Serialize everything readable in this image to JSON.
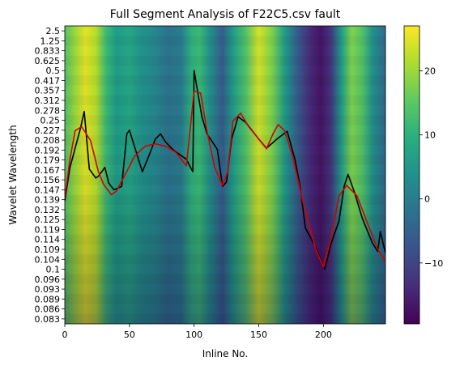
{
  "chart_data": {
    "type": "heatmap",
    "title": "Full Segment Analysis of F22C5.csv fault",
    "xlabel": "Inline No.",
    "ylabel": "Wavelet Wavelength",
    "xlim": [
      0,
      248
    ],
    "x_ticks": [
      0,
      50,
      100,
      150,
      200
    ],
    "y_tick_labels": [
      "2.5",
      "1.25",
      "0.833",
      "0.625",
      "0.5",
      "0.417",
      "0.357",
      "0.312",
      "0.278",
      "0.25",
      "0.227",
      "0.208",
      "0.192",
      "0.179",
      "0.167",
      "0.156",
      "0.147",
      "0.139",
      "0.132",
      "0.125",
      "0.119",
      "0.114",
      "0.109",
      "0.104",
      "0.1",
      "0.096",
      "0.093",
      "0.089",
      "0.086",
      "0.083"
    ],
    "colorbar": {
      "colormap": "viridis",
      "range": [
        -19.5,
        27
      ],
      "ticks": [
        -10,
        0,
        10,
        20
      ]
    },
    "heatmap_column_profile": [
      {
        "x": 0,
        "v": 14
      },
      {
        "x": 8,
        "v": 20
      },
      {
        "x": 16,
        "v": 25
      },
      {
        "x": 24,
        "v": 22
      },
      {
        "x": 32,
        "v": 12
      },
      {
        "x": 40,
        "v": 6
      },
      {
        "x": 50,
        "v": 8
      },
      {
        "x": 60,
        "v": 4
      },
      {
        "x": 70,
        "v": 2
      },
      {
        "x": 80,
        "v": -2
      },
      {
        "x": 90,
        "v": 0
      },
      {
        "x": 98,
        "v": 10
      },
      {
        "x": 104,
        "v": 12
      },
      {
        "x": 112,
        "v": 4
      },
      {
        "x": 122,
        "v": -6
      },
      {
        "x": 130,
        "v": 6
      },
      {
        "x": 140,
        "v": 14
      },
      {
        "x": 150,
        "v": 24
      },
      {
        "x": 160,
        "v": 18
      },
      {
        "x": 170,
        "v": 6
      },
      {
        "x": 180,
        "v": -6
      },
      {
        "x": 190,
        "v": -14
      },
      {
        "x": 198,
        "v": -17
      },
      {
        "x": 206,
        "v": -12
      },
      {
        "x": 214,
        "v": 6
      },
      {
        "x": 222,
        "v": 18
      },
      {
        "x": 230,
        "v": 14
      },
      {
        "x": 238,
        "v": 4
      },
      {
        "x": 248,
        "v": -4
      }
    ],
    "series": [
      {
        "color": "#000000",
        "x": [
          0,
          4,
          12,
          15,
          19,
          24,
          26,
          31,
          34,
          38,
          44,
          48,
          50,
          57,
          60,
          64,
          70,
          74,
          78,
          84,
          94,
          99,
          100,
          106,
          110,
          118,
          122,
          125,
          129,
          134,
          140,
          150,
          156,
          164,
          172,
          178,
          182,
          186,
          194,
          201,
          206,
          212,
          216,
          219,
          224,
          230,
          238,
          242,
          244,
          248
        ],
        "y": [
          0.138,
          0.17,
          0.23,
          0.275,
          0.168,
          0.158,
          0.16,
          0.17,
          0.153,
          0.147,
          0.15,
          0.22,
          0.227,
          0.18,
          0.165,
          0.18,
          0.21,
          0.22,
          0.205,
          0.192,
          0.18,
          0.165,
          0.5,
          0.26,
          0.22,
          0.193,
          0.15,
          0.154,
          0.21,
          0.26,
          0.245,
          0.21,
          0.195,
          0.21,
          0.225,
          0.18,
          0.15,
          0.12,
          0.11,
          0.1,
          0.112,
          0.124,
          0.15,
          0.162,
          0.145,
          0.126,
          0.112,
          0.108,
          0.118,
          0.107
        ]
      },
      {
        "color": "#d40000",
        "x": [
          0,
          4,
          8,
          13,
          20,
          26,
          30,
          36,
          40,
          46,
          54,
          62,
          70,
          78,
          86,
          94,
          100,
          105,
          110,
          116,
          122,
          126,
          130,
          136,
          142,
          150,
          156,
          161,
          165,
          170,
          176,
          184,
          194,
          200,
          206,
          212,
          218,
          226,
          234,
          242,
          248
        ],
        "y": [
          0.14,
          0.18,
          0.226,
          0.235,
          0.207,
          0.165,
          0.152,
          0.143,
          0.146,
          0.16,
          0.184,
          0.198,
          0.202,
          0.198,
          0.189,
          0.172,
          0.355,
          0.345,
          0.225,
          0.17,
          0.151,
          0.165,
          0.248,
          0.27,
          0.236,
          0.21,
          0.194,
          0.22,
          0.24,
          0.226,
          0.185,
          0.138,
          0.109,
          0.101,
          0.115,
          0.142,
          0.151,
          0.142,
          0.123,
          0.109,
          0.103
        ]
      }
    ]
  }
}
